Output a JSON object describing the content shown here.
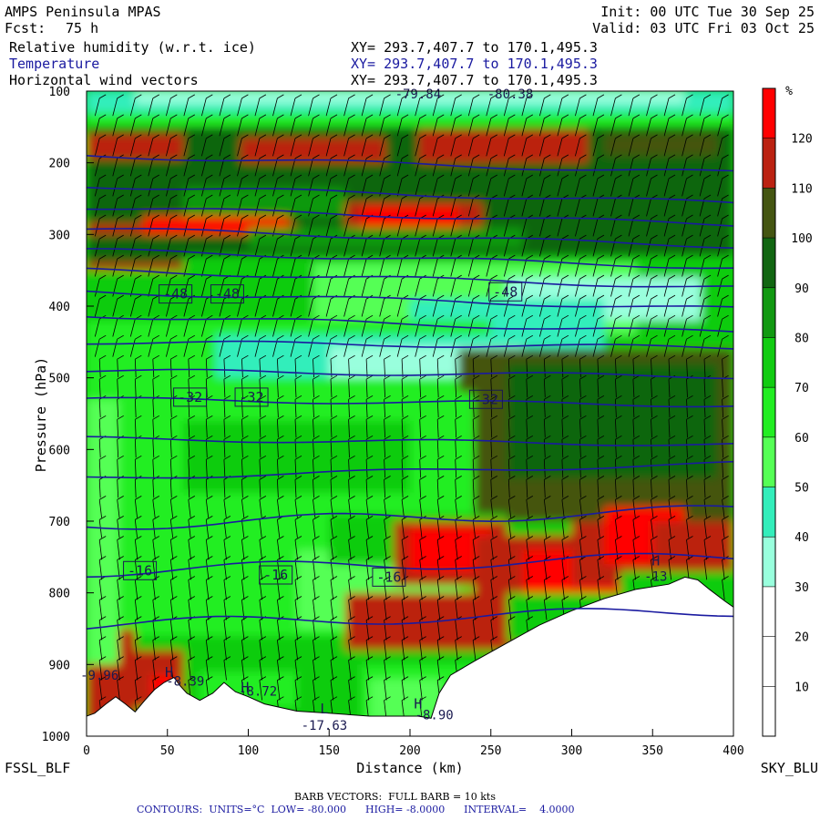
{
  "header": {
    "model": "AMPS Peninsula MPAS",
    "fcst_label": "Fcst:",
    "fcst_value": "75 h",
    "init": "Init: 00 UTC Tue 30 Sep 25",
    "valid": "Valid: 03 UTC Fri 03 Oct 25",
    "fields": [
      {
        "name": "Relative humidity (w.r.t. ice)",
        "xy": "XY= 293.7,407.7 to 170.1,495.3",
        "color": "#000000"
      },
      {
        "name": "Temperature",
        "xy": "XY= 293.7,407.7 to 170.1,495.3",
        "color": "#1a1aa0"
      },
      {
        "name": "Horizontal wind vectors",
        "xy": "XY= 293.7,407.7 to 170.1,495.3",
        "color": "#000000"
      }
    ]
  },
  "footer": {
    "left_station": "FSSL_BLF",
    "right_station": "SKY_BLU",
    "barb_note": "BARB VECTORS:  FULL BARB = 10 kts",
    "contours_note": "CONTOURS:  UNITS=°C  LOW= -80.000      HIGH= -8.0000      INTERVAL=    4.0000"
  },
  "colorbar": {
    "unit": "%",
    "levels": [
      "10",
      "20",
      "30",
      "40",
      "50",
      "60",
      "70",
      "80",
      "90",
      "100",
      "110",
      "120"
    ],
    "colors": [
      "#ffffff",
      "#ffffff",
      "#ffffff",
      "#99ffdd",
      "#33eebb",
      "#55ff55",
      "#22ee22",
      "#11cc11",
      "#119911",
      "#116611",
      "#445511",
      "#bb2211",
      "#ff0000"
    ]
  },
  "chart_data": {
    "type": "heatmap",
    "title": "Relative humidity (w.r.t. ice), Temperature, Horizontal wind vectors",
    "xlabel": "Distance (km)",
    "ylabel": "Pressure (hPa)",
    "xlim": [
      0,
      400
    ],
    "ylim": [
      1000,
      100
    ],
    "xticks": [
      "0",
      "50",
      "100",
      "150",
      "200",
      "250",
      "300",
      "350",
      "400"
    ],
    "yticks": [
      "100",
      "200",
      "300",
      "400",
      "500",
      "600",
      "700",
      "800",
      "900",
      "1000"
    ],
    "temperature_contour_labels": [
      {
        "text": "-48",
        "x": 55,
        "p": 383
      },
      {
        "text": "-48",
        "x": 87,
        "p": 383
      },
      {
        "text": "-48",
        "x": 259,
        "p": 380
      },
      {
        "text": "-32",
        "x": 64,
        "p": 527
      },
      {
        "text": "-32",
        "x": 102,
        "p": 527
      },
      {
        "text": "-32",
        "x": 247,
        "p": 530
      },
      {
        "text": "-16",
        "x": 33,
        "p": 769
      },
      {
        "text": "-16",
        "x": 117,
        "p": 775
      },
      {
        "text": "-16",
        "x": 187,
        "p": 778
      }
    ],
    "extrema_labels": [
      {
        "text": "-79.84",
        "x": 205,
        "p": 104
      },
      {
        "text": "-80.38",
        "x": 262,
        "p": 104
      },
      {
        "text": "-17.63",
        "x": 147,
        "p": 985
      },
      {
        "text": "-8.72",
        "x": 106,
        "p": 937
      },
      {
        "text": "-8.39",
        "x": 61,
        "p": 923
      },
      {
        "text": "-13",
        "x": 352,
        "p": 777
      },
      {
        "text": "-9.96",
        "x": 8,
        "p": 915
      },
      {
        "text": "-8.90",
        "x": 215,
        "p": 970
      }
    ],
    "marker_labels": [
      {
        "text": "H",
        "x": 51,
        "p": 911
      },
      {
        "text": "H",
        "x": 98,
        "p": 932
      },
      {
        "text": "L",
        "x": 147,
        "p": 962
      },
      {
        "text": "H",
        "x": 205,
        "p": 955
      },
      {
        "text": "H",
        "x": 352,
        "p": 755
      }
    ],
    "isotherm_pressures_left": [
      190,
      232,
      262,
      292,
      322,
      350,
      380,
      413,
      450,
      490,
      530,
      585,
      640,
      705,
      770,
      845
    ]
  }
}
